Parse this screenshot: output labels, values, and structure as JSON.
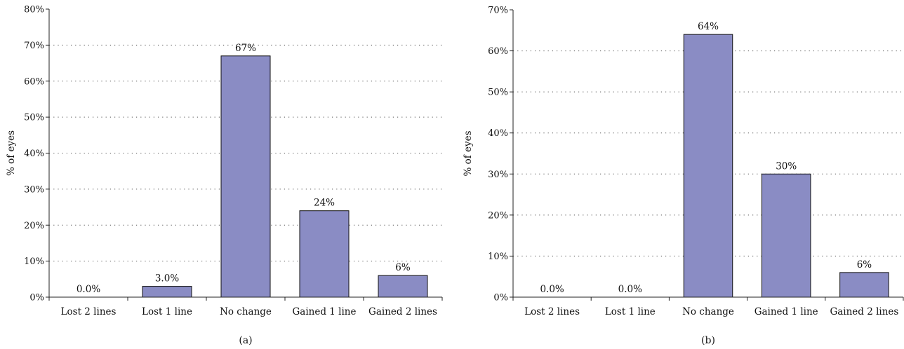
{
  "chart_data": [
    {
      "type": "bar",
      "panel_label": "(a)",
      "ylabel": "% of eyes",
      "categories": [
        "Lost 2 lines",
        "Lost 1 line",
        "No change",
        "Gained 1 line",
        "Gained 2 lines"
      ],
      "values": [
        0,
        3,
        67,
        24,
        6
      ],
      "value_labels": [
        "0.0%",
        "3.0%",
        "67%",
        "24%",
        "6%"
      ],
      "ylim": [
        0,
        80
      ],
      "yticks": [
        0,
        10,
        20,
        30,
        40,
        50,
        60,
        70,
        80
      ],
      "ytick_labels": [
        "0%",
        "10%",
        "20%",
        "30%",
        "40%",
        "50%",
        "60%",
        "70%",
        "80%"
      ],
      "grid": "dotted horizontal",
      "bar_color": "#8a8cc4"
    },
    {
      "type": "bar",
      "panel_label": "(b)",
      "ylabel": "% of eyes",
      "categories": [
        "Lost 2 lines",
        "Lost 1 line",
        "No change",
        "Gained 1 line",
        "Gained 2 lines"
      ],
      "values": [
        0,
        0,
        64,
        30,
        6
      ],
      "value_labels": [
        "0.0%",
        "0.0%",
        "64%",
        "30%",
        "6%"
      ],
      "ylim": [
        0,
        70
      ],
      "yticks": [
        0,
        10,
        20,
        30,
        40,
        50,
        60,
        70
      ],
      "ytick_labels": [
        "0%",
        "10%",
        "20%",
        "30%",
        "40%",
        "50%",
        "60%",
        "70%"
      ],
      "grid": "dotted horizontal",
      "bar_color": "#8a8cc4"
    }
  ]
}
